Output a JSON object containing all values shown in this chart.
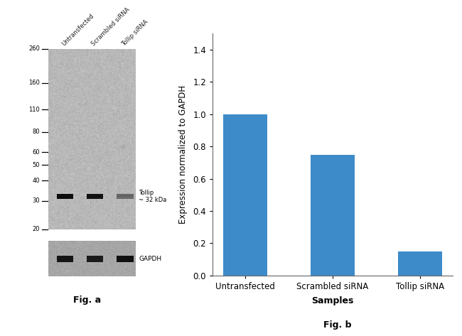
{
  "fig_a_label": "Fig. a",
  "fig_b_label": "Fig. b",
  "bar_categories": [
    "Untransfected",
    "Scrambled siRNA",
    "Tollip siRNA"
  ],
  "bar_values": [
    1.0,
    0.75,
    0.15
  ],
  "bar_color": "#3d8bc9",
  "ylabel": "Expression normalized to GAPDH",
  "xlabel": "Samples",
  "ylim": [
    0,
    1.5
  ],
  "yticks": [
    0,
    0.2,
    0.4,
    0.6,
    0.8,
    1.0,
    1.2,
    1.4
  ],
  "wb_ladder_labels": [
    "260",
    "160",
    "110",
    "80",
    "60",
    "50",
    "40",
    "30",
    "20"
  ],
  "wb_ladder_values": [
    260,
    160,
    110,
    80,
    60,
    50,
    40,
    30,
    20
  ],
  "tollip_annotation": "Tollip\n~ 32 kDa",
  "gapdh_annotation": "GAPDH",
  "col_labels": [
    "Untransfected",
    "Scrambled siRNA",
    "Tollip siRNA"
  ],
  "background_color": "#ffffff",
  "gel_bg_color": "#b8b8b8",
  "gapdh_bg_color": "#a8a8a8",
  "band_color": "#111111",
  "artifact_dot_color": "#999999"
}
